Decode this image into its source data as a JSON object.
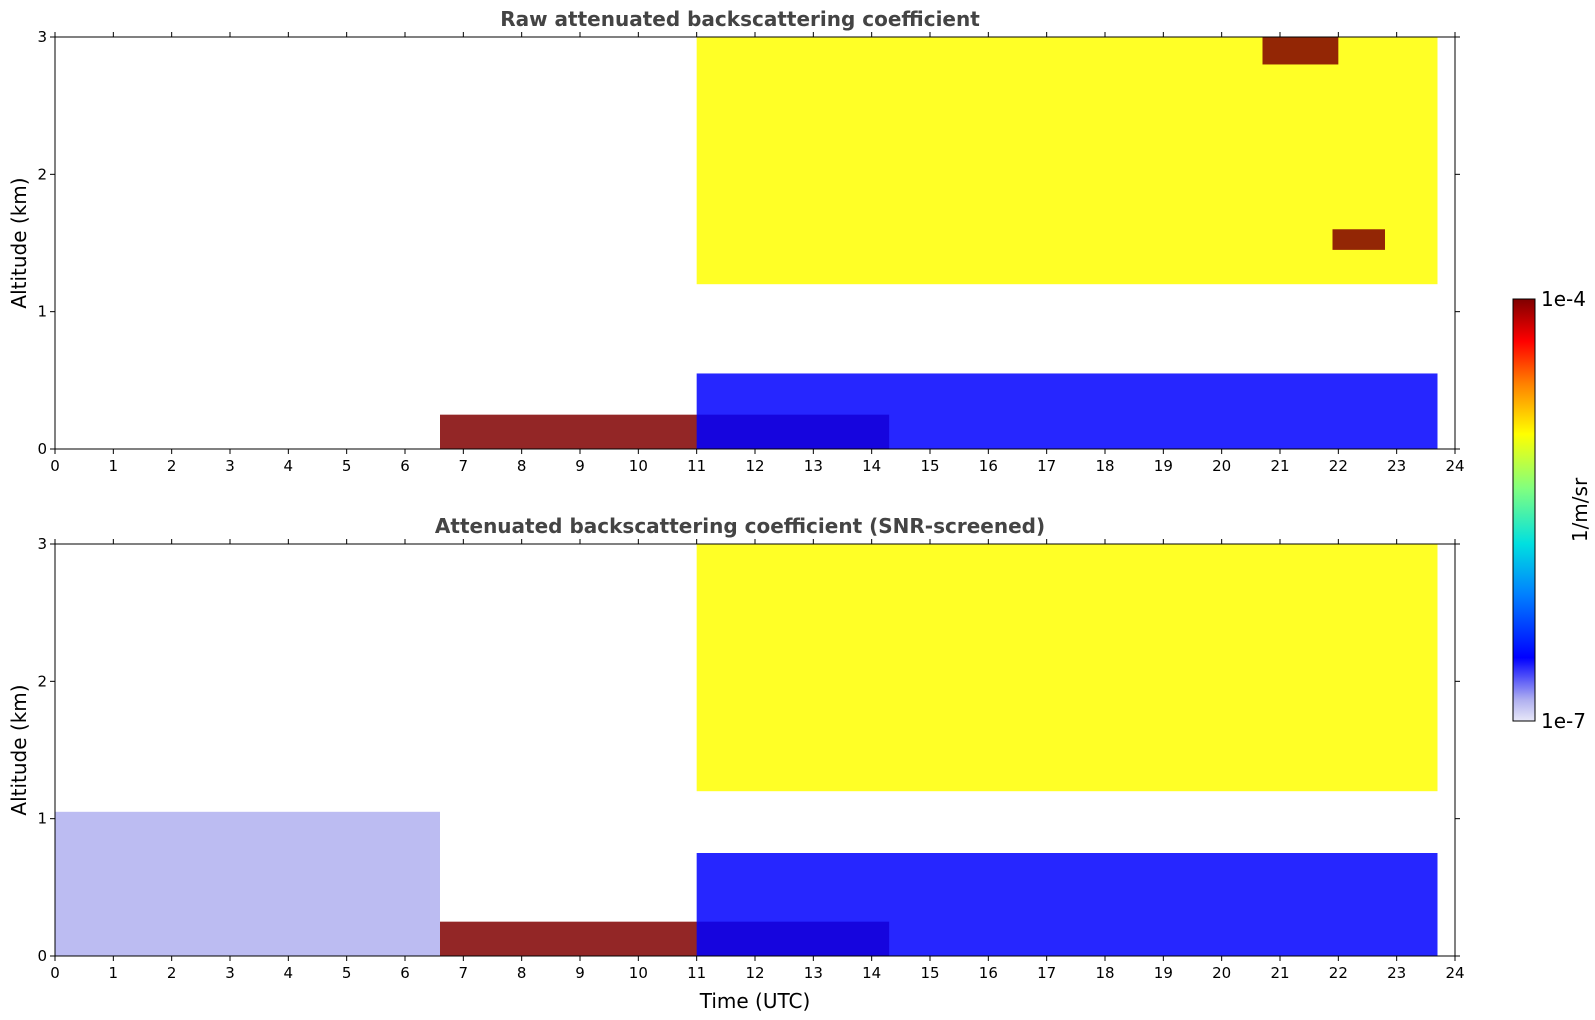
{
  "chart_data": [
    {
      "type": "heatmap",
      "title": "Raw attenuated backscattering coefficient",
      "xlabel": "",
      "ylabel": "Altitude (km)",
      "xlim": [
        0,
        24
      ],
      "ylim": [
        0,
        3
      ],
      "xticks": [
        "0",
        "1",
        "2",
        "3",
        "4",
        "5",
        "6",
        "7",
        "8",
        "9",
        "10",
        "11",
        "12",
        "13",
        "14",
        "15",
        "16",
        "17",
        "18",
        "19",
        "20",
        "21",
        "22",
        "23",
        "24"
      ],
      "yticks": [
        "0",
        "1",
        "2",
        "3"
      ],
      "features": [
        {
          "name": "surface aerosol layer",
          "t_start": 6.6,
          "t_end": 14.3,
          "alt_top": 0.25,
          "level": 1.0
        },
        {
          "name": "boundary layer",
          "t_start": 11.0,
          "t_end": 23.7,
          "alt_top": 0.55,
          "level": 0.2
        },
        {
          "name": "convective clouds",
          "t_start": 11.0,
          "t_end": 23.7,
          "alt_base": 1.2,
          "alt_top": 3.0,
          "level": 0.7
        },
        {
          "name": "cloud layer high",
          "t_start": 20.7,
          "t_end": 22.0,
          "alt_base": 2.8,
          "alt_top": 3.0,
          "level": 1.0
        },
        {
          "name": "cloud layer mid",
          "t_start": 21.9,
          "t_end": 22.8,
          "alt_base": 1.45,
          "alt_top": 1.6,
          "level": 1.0
        }
      ]
    },
    {
      "type": "heatmap",
      "title": "Attenuated backscattering coefficient (SNR-screened)",
      "xlabel": "Time (UTC)",
      "ylabel": "Altitude (km)",
      "xlim": [
        0,
        24
      ],
      "ylim": [
        0,
        3
      ],
      "xticks": [
        "0",
        "1",
        "2",
        "3",
        "4",
        "5",
        "6",
        "7",
        "8",
        "9",
        "10",
        "11",
        "12",
        "13",
        "14",
        "15",
        "16",
        "17",
        "18",
        "19",
        "20",
        "21",
        "22",
        "23",
        "24"
      ],
      "yticks": [
        "0",
        "1",
        "2",
        "3"
      ],
      "features": [
        {
          "name": "night residual layer",
          "t_start": 0.0,
          "t_end": 6.6,
          "alt_top": 1.05,
          "level": 0.15
        },
        {
          "name": "surface aerosol layer",
          "t_start": 6.6,
          "t_end": 14.3,
          "alt_top": 0.25,
          "level": 1.0
        },
        {
          "name": "boundary layer",
          "t_start": 11.0,
          "t_end": 23.7,
          "alt_top": 0.75,
          "level": 0.2
        },
        {
          "name": "convective clouds",
          "t_start": 11.0,
          "t_end": 23.7,
          "alt_base": 1.2,
          "alt_top": 3.0,
          "level": 0.7
        }
      ]
    }
  ],
  "colorbar": {
    "max_label": "1e-4",
    "min_label": "1e-7",
    "label": "1/m/sr",
    "colors": [
      "#e8e8f8",
      "#b0b0f0",
      "#0000ff",
      "#0080ff",
      "#00e0e0",
      "#80ff80",
      "#ffff00",
      "#ff8000",
      "#ff0000",
      "#800000"
    ]
  }
}
